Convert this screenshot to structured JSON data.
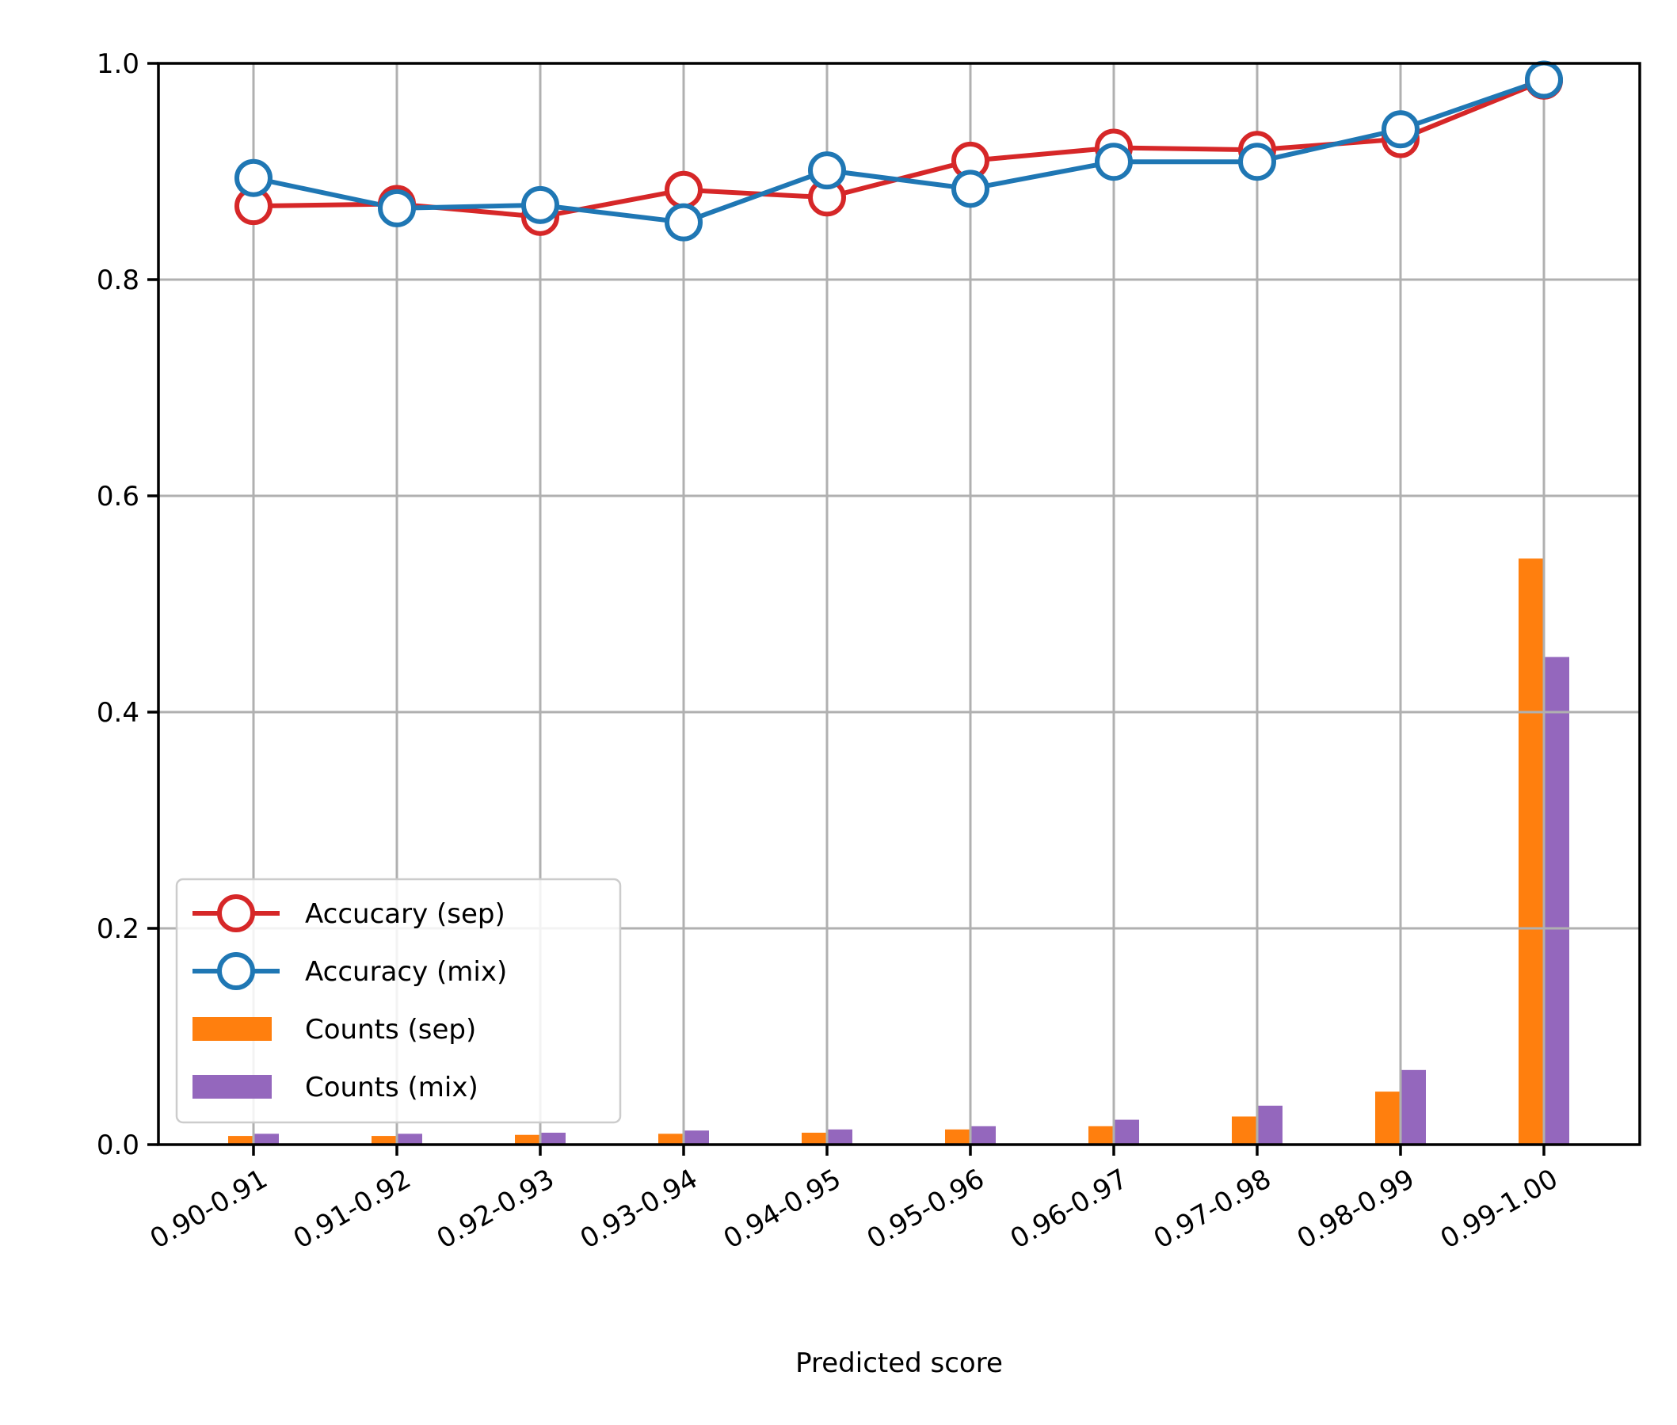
{
  "chart_data": {
    "type": "bar",
    "title": "",
    "xlabel": "Predicted score",
    "ylabel": "",
    "ylim": [
      0,
      1.0
    ],
    "yticks": [
      "0.0",
      "0.2",
      "0.4",
      "0.6",
      "0.8",
      "1.0"
    ],
    "ytick_values": [
      0,
      0.2,
      0.4,
      0.6,
      0.8,
      1.0
    ],
    "grid": true,
    "legend_position": "lower-left",
    "categories": [
      "0.90-0.91",
      "0.91-0.92",
      "0.92-0.93",
      "0.93-0.94",
      "0.94-0.95",
      "0.95-0.96",
      "0.96-0.97",
      "0.97-0.98",
      "0.98-0.99",
      "0.99-1.00"
    ],
    "bar_series": [
      {
        "name": "Counts (sep)",
        "color": "#ff7f0e",
        "values": [
          0.008,
          0.008,
          0.009,
          0.01,
          0.011,
          0.014,
          0.017,
          0.026,
          0.049,
          0.542
        ]
      },
      {
        "name": "Counts (mix)",
        "color": "#9467bd",
        "values": [
          0.01,
          0.01,
          0.011,
          0.013,
          0.014,
          0.017,
          0.023,
          0.036,
          0.069,
          0.451
        ]
      }
    ],
    "line_series": [
      {
        "name": "Accucary (sep)",
        "color": "#d62728",
        "values": [
          0.868,
          0.87,
          0.858,
          0.883,
          0.876,
          0.91,
          0.922,
          0.92,
          0.93,
          0.984
        ]
      },
      {
        "name": "Accuracy (mix)",
        "color": "#1f77b4",
        "values": [
          0.894,
          0.866,
          0.869,
          0.853,
          0.901,
          0.884,
          0.909,
          0.909,
          0.939,
          0.985
        ]
      }
    ]
  }
}
